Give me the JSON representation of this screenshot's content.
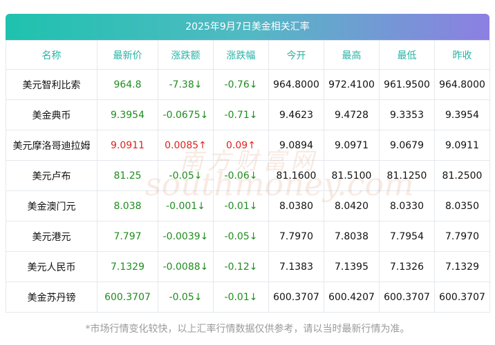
{
  "title": "2025年9月7日美金相关汇率",
  "table": {
    "header": [
      "名称",
      "最新价",
      "涨跌额",
      "涨跌幅",
      "今开",
      "最高",
      "最低",
      "昨收"
    ],
    "rows": [
      {
        "color": "#1e8c1e",
        "cells": [
          "美元智利比索",
          "964.8",
          "-7.38↓",
          "-0.76↓",
          "964.8000",
          "972.4100",
          "961.9500",
          "964.8000"
        ]
      },
      {
        "color": "#1e8c1e",
        "cells": [
          "美金典币",
          "9.3954",
          "-0.0675↓",
          "-0.71↓",
          "9.4623",
          "9.4728",
          "9.3353",
          "9.3954"
        ]
      },
      {
        "color": "#e0201a",
        "cells": [
          "美元摩洛哥迪拉姆",
          "9.0911",
          "0.0085↑",
          "0.09↑",
          "9.0894",
          "9.0971",
          "9.0679",
          "9.0911"
        ]
      },
      {
        "color": "#1e8c1e",
        "cells": [
          "美元卢布",
          "81.25",
          "-0.05↓",
          "-0.06↓",
          "81.1600",
          "81.5100",
          "81.1250",
          "81.2500"
        ]
      },
      {
        "color": "#1e8c1e",
        "cells": [
          "美金澳门元",
          "8.038",
          "-0.001↓",
          "-0.01↓",
          "8.0380",
          "8.0420",
          "8.0330",
          "8.0350"
        ]
      },
      {
        "color": "#1e8c1e",
        "cells": [
          "美元港元",
          "7.797",
          "-0.0039↓",
          "-0.05↓",
          "7.7970",
          "7.8038",
          "7.7954",
          "7.7970"
        ]
      },
      {
        "color": "#1e8c1e",
        "cells": [
          "美元人民币",
          "7.1329",
          "-0.0088↓",
          "-0.12↓",
          "7.1383",
          "7.1395",
          "7.1326",
          "7.1329"
        ]
      },
      {
        "color": "#1e8c1e",
        "cells": [
          "美金苏丹镑",
          "600.3707",
          "-0.05↓",
          "-0.01↓",
          "600.3707",
          "600.4207",
          "600.3707",
          "600.3707"
        ]
      }
    ]
  },
  "watermark": [
    "南方财富网",
    "southmoney.com"
  ],
  "footnote": "*市场行情变化较快，以上汇率行情数据仅供参考，请以当时最新行情为准。"
}
